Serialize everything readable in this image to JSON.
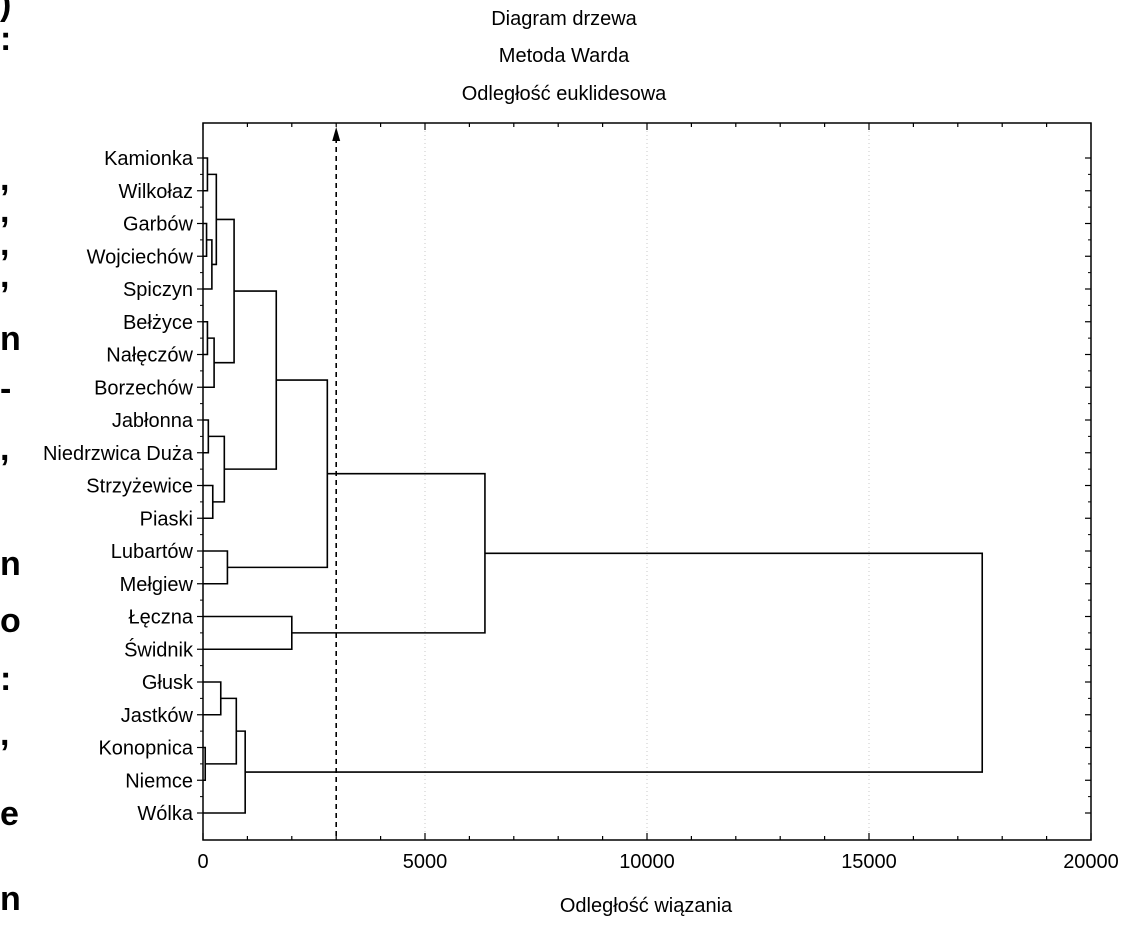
{
  "side_fragments": [
    ":",
    ":",
    ",",
    ",",
    ",",
    ",",
    "n",
    "-",
    ",",
    "n",
    "o",
    ":",
    ",",
    "e",
    "n"
  ],
  "chart_data": {
    "type": "dendrogram",
    "title": [
      "Diagram drzewa",
      "Metoda Warda",
      "Odległość euklidesowa"
    ],
    "xlabel": "Odległość wiązania",
    "ylabel": "",
    "xlim": [
      0,
      20000
    ],
    "xticks": [
      0,
      5000,
      10000,
      15000,
      20000
    ],
    "grid": "vertical-dotted",
    "cut_line": {
      "value": 3000,
      "style": "dashed",
      "arrow": "top"
    },
    "leaves": [
      "Kamionka",
      "Wilkołaz",
      "Garbów",
      "Wojciechów",
      "Spiczyn",
      "Bełżyce",
      "Nałęczów",
      "Borzechów",
      "Jabłonna",
      "Niedrzwica Duża",
      "Strzyżewice",
      "Piaski",
      "Lubartów",
      "Mełgiew",
      "Łęczna",
      "Świdnik",
      "Głusk",
      "Jastków",
      "Konopnica",
      "Niemce",
      "Wólka"
    ],
    "merges": [
      {
        "id": "c1",
        "left": "Kamionka",
        "right": "Wilkołaz",
        "height": 100
      },
      {
        "id": "c2",
        "left": "Garbów",
        "right": "Wojciechów",
        "height": 80
      },
      {
        "id": "c3",
        "left": "c2",
        "right": "Spiczyn",
        "height": 200
      },
      {
        "id": "c4",
        "left": "c1",
        "right": "c3",
        "height": 300
      },
      {
        "id": "c5",
        "left": "Bełżyce",
        "right": "Nałęczów",
        "height": 100
      },
      {
        "id": "c6",
        "left": "c5",
        "right": "Borzechów",
        "height": 250
      },
      {
        "id": "c7",
        "left": "c4",
        "right": "c6",
        "height": 700
      },
      {
        "id": "c8",
        "left": "Jabłonna",
        "right": "Niedrzwica Duża",
        "height": 120
      },
      {
        "id": "c9",
        "left": "Strzyżewice",
        "right": "Piaski",
        "height": 220
      },
      {
        "id": "c10",
        "left": "c8",
        "right": "c9",
        "height": 480
      },
      {
        "id": "c11",
        "left": "c7",
        "right": "c10",
        "height": 1650
      },
      {
        "id": "c12",
        "left": "Lubartów",
        "right": "Mełgiew",
        "height": 550
      },
      {
        "id": "c13",
        "left": "c11",
        "right": "c12",
        "height": 2800
      },
      {
        "id": "c14",
        "left": "Łęczna",
        "right": "Świdnik",
        "height": 2000
      },
      {
        "id": "c15",
        "left": "c13",
        "right": "c14",
        "height": 6350
      },
      {
        "id": "c16",
        "left": "Głusk",
        "right": "Jastków",
        "height": 400
      },
      {
        "id": "c17",
        "left": "Konopnica",
        "right": "Niemce",
        "height": 50
      },
      {
        "id": "c18",
        "left": "c16",
        "right": "c17",
        "height": 750
      },
      {
        "id": "c19",
        "left": "c18",
        "right": "Wólka",
        "height": 950
      },
      {
        "id": "c20",
        "left": "c15",
        "right": "c19",
        "height": 17550
      }
    ]
  }
}
